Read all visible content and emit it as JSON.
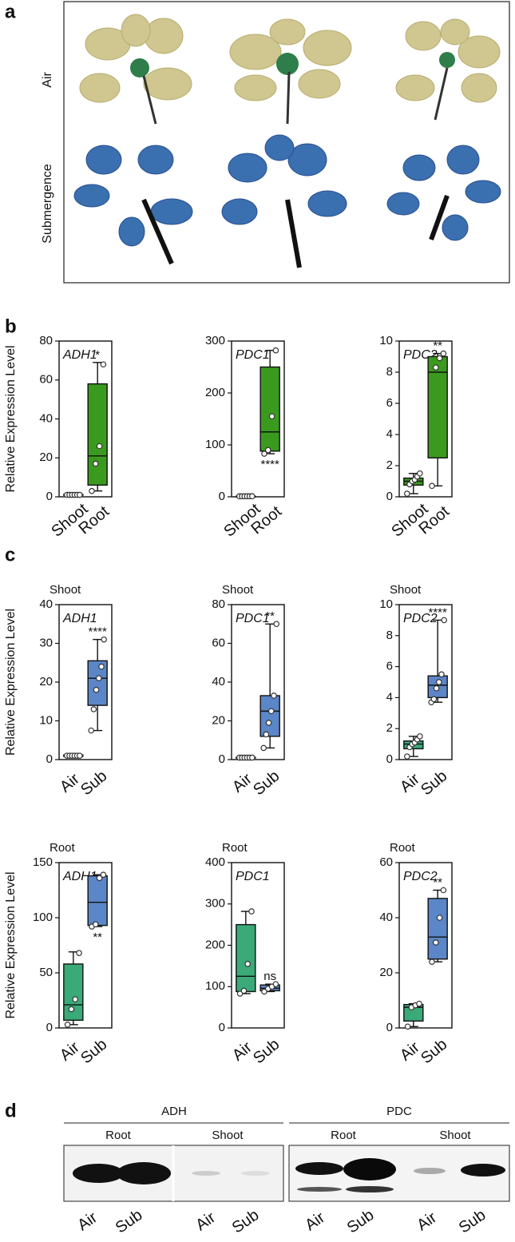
{
  "panel_labels": [
    "a",
    "b",
    "c",
    "d"
  ],
  "photo": {
    "row_labels": [
      "Air",
      "Submergence"
    ]
  },
  "chart_data": [
    {
      "type": "box",
      "title": "ADH1",
      "ylabel": "Relative Expression Level",
      "categories": [
        "Shoot",
        "Root"
      ],
      "ylim": [
        0,
        80
      ],
      "yticks": [
        0,
        20,
        40,
        60,
        80
      ],
      "annotation": "*",
      "boxes": [
        {
          "color": "#3a9a1e",
          "min": 0.5,
          "q1": 0.8,
          "median": 1,
          "q3": 1.2,
          "max": 1.5,
          "points": [
            1,
            1,
            1,
            1,
            1,
            1
          ]
        },
        {
          "color": "#3a9a1e",
          "min": 3,
          "q1": 6,
          "median": 21,
          "q3": 58,
          "max": 69,
          "points": [
            3,
            17,
            26,
            68
          ]
        }
      ]
    },
    {
      "type": "box",
      "title": "PDC1",
      "categories": [
        "Shoot",
        "Root"
      ],
      "ylim": [
        0,
        300
      ],
      "yticks": [
        0,
        100,
        200,
        300
      ],
      "annotation": "****",
      "boxes": [
        {
          "color": "#3a9a1e",
          "min": 0.5,
          "q1": 0.8,
          "median": 1,
          "q3": 1.2,
          "max": 1.5,
          "points": [
            1,
            1,
            1,
            1,
            1,
            1
          ]
        },
        {
          "color": "#3a9a1e",
          "min": 83,
          "q1": 88,
          "median": 125,
          "q3": 250,
          "max": 282,
          "points": [
            83,
            90,
            155,
            282
          ]
        }
      ]
    },
    {
      "type": "box",
      "title": "PDC2",
      "categories": [
        "Shoot",
        "Root"
      ],
      "ylim": [
        0,
        10
      ],
      "yticks": [
        0,
        2,
        4,
        6,
        8,
        10
      ],
      "annotation": "**",
      "boxes": [
        {
          "color": "#3a9a1e",
          "min": 0.2,
          "q1": 0.75,
          "median": 1.0,
          "q3": 1.2,
          "max": 1.5,
          "points": [
            0.2,
            0.8,
            1.0,
            1.1,
            1.3,
            1.5
          ]
        },
        {
          "color": "#3a9a1e",
          "min": 0.7,
          "q1": 2.5,
          "median": 8.0,
          "q3": 9.0,
          "max": 9.2,
          "points": [
            0.7,
            8.3,
            8.9,
            9.2
          ]
        }
      ]
    },
    {
      "type": "box",
      "title": "ADH1",
      "subtitle": "Shoot",
      "ylabel": "Relative Expression Level",
      "categories": [
        "Air",
        "Sub"
      ],
      "ylim": [
        0,
        40
      ],
      "yticks": [
        0,
        10,
        20,
        30,
        40
      ],
      "annotation": "****",
      "boxes": [
        {
          "color": "#3aaa78",
          "min": 0.5,
          "q1": 0.8,
          "median": 1,
          "q3": 1.2,
          "max": 1.5,
          "points": [
            1,
            1,
            1,
            1,
            1,
            1
          ]
        },
        {
          "color": "#5b86c8",
          "min": 7.5,
          "q1": 14,
          "median": 21,
          "q3": 25.5,
          "max": 31,
          "points": [
            7.5,
            13,
            18,
            21,
            24,
            31
          ]
        }
      ]
    },
    {
      "type": "box",
      "title": "PDC1",
      "subtitle": "Shoot",
      "categories": [
        "Air",
        "Sub"
      ],
      "ylim": [
        0,
        80
      ],
      "yticks": [
        0,
        20,
        40,
        60,
        80
      ],
      "annotation": "**",
      "boxes": [
        {
          "color": "#3aaa78",
          "min": 0.5,
          "q1": 0.8,
          "median": 1,
          "q3": 1.2,
          "max": 1.5,
          "points": [
            1,
            1,
            1,
            1,
            1,
            1
          ]
        },
        {
          "color": "#5b86c8",
          "min": 6,
          "q1": 12,
          "median": 25,
          "q3": 33,
          "max": 70,
          "points": [
            6,
            13,
            19,
            25,
            33,
            70
          ]
        }
      ]
    },
    {
      "type": "box",
      "title": "PDC2",
      "subtitle": "Shoot",
      "categories": [
        "Air",
        "Sub"
      ],
      "ylim": [
        0,
        10
      ],
      "yticks": [
        0,
        2,
        4,
        6,
        8,
        10
      ],
      "annotation": "****",
      "boxes": [
        {
          "color": "#3aaa78",
          "min": 0.2,
          "q1": 0.7,
          "median": 1,
          "q3": 1.2,
          "max": 1.5,
          "points": [
            0.2,
            0.8,
            1.0,
            1.1,
            1.3,
            1.5
          ]
        },
        {
          "color": "#5b86c8",
          "min": 3.7,
          "q1": 4.0,
          "median": 4.8,
          "q3": 5.4,
          "max": 9.0,
          "points": [
            3.7,
            3.9,
            4.6,
            5.0,
            5.5,
            9.0
          ]
        }
      ]
    },
    {
      "type": "box",
      "title": "ADH1",
      "subtitle": "Root",
      "ylabel": "Relative Expression Level",
      "categories": [
        "Air",
        "Sub"
      ],
      "ylim": [
        0,
        150
      ],
      "yticks": [
        0,
        50,
        100,
        150
      ],
      "annotation": "**",
      "boxes": [
        {
          "color": "#3aaa78",
          "min": 3,
          "q1": 7,
          "median": 21,
          "q3": 58,
          "max": 69,
          "points": [
            3,
            17,
            26,
            68
          ]
        },
        {
          "color": "#5b86c8",
          "min": 92,
          "q1": 93,
          "median": 114,
          "q3": 138,
          "max": 139,
          "points": [
            92,
            94,
            136,
            139
          ]
        }
      ]
    },
    {
      "type": "box",
      "title": "PDC1",
      "subtitle": "Root",
      "categories": [
        "Air",
        "Sub"
      ],
      "ylim": [
        0,
        400
      ],
      "yticks": [
        0,
        100,
        200,
        300,
        400
      ],
      "annotation": "ns",
      "boxes": [
        {
          "color": "#3aaa78",
          "min": 83,
          "q1": 88,
          "median": 125,
          "q3": 250,
          "max": 282,
          "points": [
            83,
            90,
            155,
            282
          ]
        },
        {
          "color": "#5b86c8",
          "min": 88,
          "q1": 90,
          "median": 96,
          "q3": 104,
          "max": 106,
          "points": [
            88,
            95,
            100,
            106
          ]
        }
      ]
    },
    {
      "type": "box",
      "title": "PDC2",
      "subtitle": "Root",
      "categories": [
        "Air",
        "Sub"
      ],
      "ylim": [
        0,
        60
      ],
      "yticks": [
        0,
        20,
        40,
        60
      ],
      "annotation": "**",
      "boxes": [
        {
          "color": "#3aaa78",
          "min": 0.5,
          "q1": 2.5,
          "median": 7.5,
          "q3": 8.5,
          "max": 8.8,
          "points": [
            0.5,
            7.5,
            8.2,
            8.8
          ]
        },
        {
          "color": "#5b86c8",
          "min": 24,
          "q1": 25,
          "median": 33,
          "q3": 47,
          "max": 50,
          "points": [
            24,
            31,
            40,
            50
          ]
        }
      ]
    }
  ],
  "blot": {
    "proteins": [
      {
        "name": "ADH",
        "tissues": [
          "Root",
          "Shoot"
        ]
      },
      {
        "name": "PDC",
        "tissues": [
          "Root",
          "Shoot"
        ]
      }
    ],
    "lanes": [
      "Air",
      "Sub",
      "Air",
      "Sub",
      "Air",
      "Sub",
      "Air",
      "Sub"
    ]
  }
}
